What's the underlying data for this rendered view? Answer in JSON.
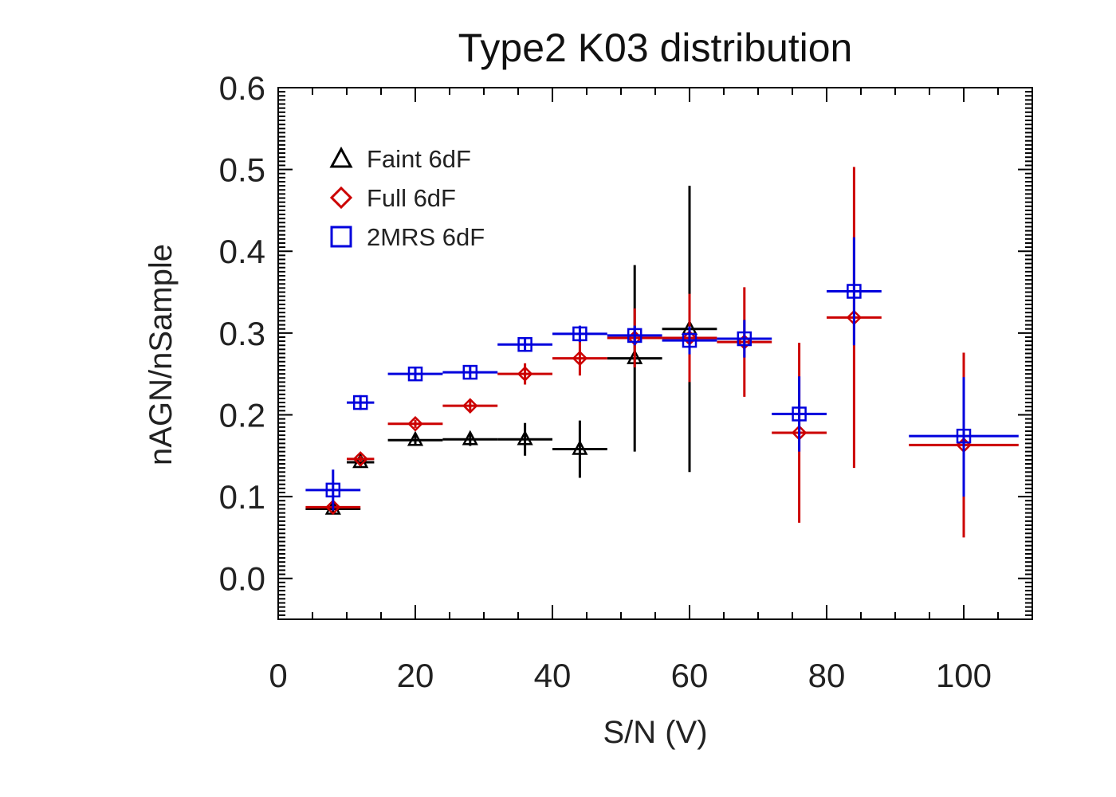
{
  "chart_data": {
    "type": "scatter",
    "title": "Type2 K03 distribution",
    "xlabel": "S/N (V)",
    "ylabel": "nAGN/nSample",
    "xlim": [
      0,
      110
    ],
    "ylim": [
      -0.05,
      0.6
    ],
    "x_ticks": [
      "0",
      "20",
      "40",
      "60",
      "80",
      "100"
    ],
    "x_tick_values": [
      0,
      20,
      40,
      60,
      80,
      100
    ],
    "y_ticks": [
      "0.0",
      "0.1",
      "0.2",
      "0.3",
      "0.4",
      "0.5",
      "0.6"
    ],
    "y_tick_values": [
      0.0,
      0.1,
      0.2,
      0.3,
      0.4,
      0.5,
      0.6
    ],
    "legend_position": "top-left",
    "series": [
      {
        "name": "Faint 6dF",
        "marker": "triangle",
        "color": "#000000",
        "points": [
          {
            "x": 8,
            "xerr": 4,
            "y": 0.085,
            "ylo": 0.08,
            "yhi": 0.092
          },
          {
            "x": 12,
            "xerr": 2,
            "y": 0.142,
            "ylo": 0.137,
            "yhi": 0.147
          },
          {
            "x": 20,
            "xerr": 4,
            "y": 0.169,
            "ylo": 0.162,
            "yhi": 0.177
          },
          {
            "x": 28,
            "xerr": 4,
            "y": 0.17,
            "ylo": 0.162,
            "yhi": 0.178
          },
          {
            "x": 36,
            "xerr": 4,
            "y": 0.17,
            "ylo": 0.15,
            "yhi": 0.19
          },
          {
            "x": 44,
            "xerr": 4,
            "y": 0.158,
            "ylo": 0.123,
            "yhi": 0.193
          },
          {
            "x": 52,
            "xerr": 4,
            "y": 0.269,
            "ylo": 0.155,
            "yhi": 0.383
          },
          {
            "x": 60,
            "xerr": 4,
            "y": 0.305,
            "ylo": 0.13,
            "yhi": 0.48
          }
        ]
      },
      {
        "name": "Full 6dF",
        "marker": "diamond",
        "color": "#cc0000",
        "points": [
          {
            "x": 8,
            "xerr": 4,
            "y": 0.087,
            "ylo": 0.083,
            "yhi": 0.091
          },
          {
            "x": 12,
            "xerr": 2,
            "y": 0.146,
            "ylo": 0.142,
            "yhi": 0.15
          },
          {
            "x": 20,
            "xerr": 4,
            "y": 0.189,
            "ylo": 0.184,
            "yhi": 0.194
          },
          {
            "x": 28,
            "xerr": 4,
            "y": 0.211,
            "ylo": 0.205,
            "yhi": 0.217
          },
          {
            "x": 36,
            "xerr": 4,
            "y": 0.25,
            "ylo": 0.237,
            "yhi": 0.263
          },
          {
            "x": 44,
            "xerr": 4,
            "y": 0.269,
            "ylo": 0.248,
            "yhi": 0.29
          },
          {
            "x": 52,
            "xerr": 4,
            "y": 0.294,
            "ylo": 0.258,
            "yhi": 0.33
          },
          {
            "x": 60,
            "xerr": 4,
            "y": 0.294,
            "ylo": 0.24,
            "yhi": 0.348
          },
          {
            "x": 68,
            "xerr": 4,
            "y": 0.289,
            "ylo": 0.222,
            "yhi": 0.356
          },
          {
            "x": 76,
            "xerr": 4,
            "y": 0.178,
            "ylo": 0.068,
            "yhi": 0.288
          },
          {
            "x": 84,
            "xerr": 4,
            "y": 0.319,
            "ylo": 0.135,
            "yhi": 0.503
          },
          {
            "x": 100,
            "xerr": 8,
            "y": 0.163,
            "ylo": 0.05,
            "yhi": 0.276
          }
        ]
      },
      {
        "name": "2MRS 6dF",
        "marker": "square",
        "color": "#0000dd",
        "points": [
          {
            "x": 8,
            "xerr": 4,
            "y": 0.108,
            "ylo": 0.083,
            "yhi": 0.133
          },
          {
            "x": 12,
            "xerr": 2,
            "y": 0.215,
            "ylo": 0.206,
            "yhi": 0.224
          },
          {
            "x": 20,
            "xerr": 4,
            "y": 0.25,
            "ylo": 0.243,
            "yhi": 0.257
          },
          {
            "x": 28,
            "xerr": 4,
            "y": 0.252,
            "ylo": 0.245,
            "yhi": 0.259
          },
          {
            "x": 36,
            "xerr": 4,
            "y": 0.286,
            "ylo": 0.277,
            "yhi": 0.295
          },
          {
            "x": 44,
            "xerr": 4,
            "y": 0.299,
            "ylo": 0.289,
            "yhi": 0.309
          },
          {
            "x": 52,
            "xerr": 4,
            "y": 0.297,
            "ylo": 0.285,
            "yhi": 0.309
          },
          {
            "x": 60,
            "xerr": 4,
            "y": 0.291,
            "ylo": 0.274,
            "yhi": 0.308
          },
          {
            "x": 68,
            "xerr": 4,
            "y": 0.293,
            "ylo": 0.27,
            "yhi": 0.316
          },
          {
            "x": 76,
            "xerr": 4,
            "y": 0.201,
            "ylo": 0.155,
            "yhi": 0.247
          },
          {
            "x": 84,
            "xerr": 4,
            "y": 0.351,
            "ylo": 0.285,
            "yhi": 0.417
          },
          {
            "x": 100,
            "xerr": 8,
            "y": 0.174,
            "ylo": 0.1,
            "yhi": 0.246
          }
        ]
      }
    ]
  }
}
